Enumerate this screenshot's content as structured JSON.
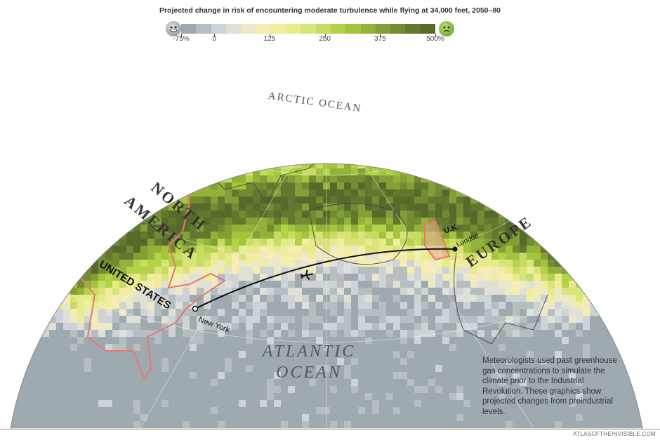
{
  "title": "Projected change in risk of encountering moderate turbulence while flying at 34,000 feet, 2050–80",
  "legend": {
    "ticks": [
      "-75%",
      "0",
      "125",
      "250",
      "375",
      "500%"
    ],
    "tick_values": [
      -75,
      0,
      125,
      250,
      375,
      500
    ],
    "low_icon": "smiling-face-icon",
    "high_icon": "nauseated-face-icon",
    "colors": [
      "#9eaab0",
      "#b6bec2",
      "#cdd3d6",
      "#e0e0d6",
      "#ede8c8",
      "#f6eeb0",
      "#f1eda0",
      "#e7eb8c",
      "#d9e57a",
      "#c7dc62",
      "#b4d248",
      "#a3c43e",
      "#93b23a",
      "#839f36",
      "#728c32",
      "#62782e",
      "#566a2b"
    ]
  },
  "labels": {
    "arctic": "ARCTIC OCEAN",
    "north": "NORTH",
    "america": "AMERICA",
    "us": "UNITED STATES",
    "europe": "EUROPE",
    "uk": "U.K.",
    "london": "London",
    "newyork": "New York",
    "atlantic": "ATLANTIC",
    "ocean": "OCEAN"
  },
  "note": "Meteorologists used past greenhouse gas concentrations to simulate the climate prior to the Industrial Revolution. These graphics show projected changes from preindustrial levels.",
  "credit": "ATLASOFTHEINVISIBLE.COM"
}
